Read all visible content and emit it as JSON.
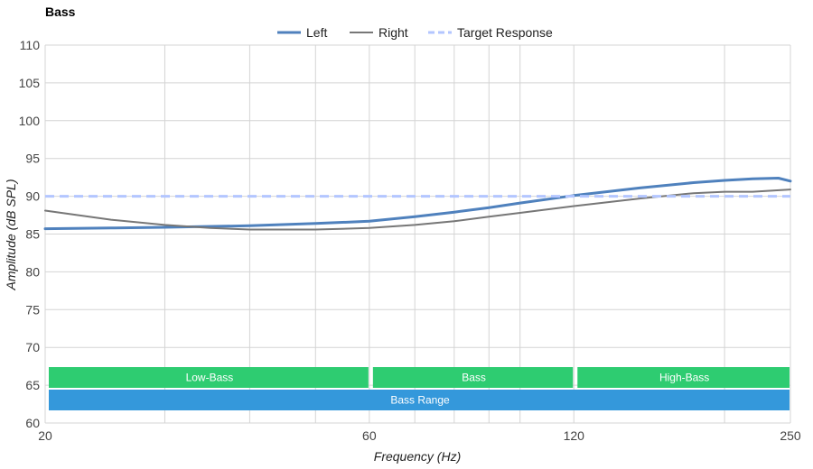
{
  "chart_data": {
    "type": "line",
    "title": "Bass",
    "xlabel": "Frequency (Hz)",
    "ylabel": "Amplitude (dB SPL)",
    "x_scale": "log",
    "xlim": [
      20,
      250
    ],
    "ylim": [
      60,
      110
    ],
    "x_ticks": [
      20,
      60,
      120,
      250
    ],
    "y_ticks": [
      60,
      65,
      70,
      75,
      80,
      85,
      90,
      95,
      100,
      105,
      110
    ],
    "x_minor_gridlines": [
      30,
      40,
      50,
      70,
      80,
      90,
      100,
      200
    ],
    "grid": true,
    "legend_position": "top",
    "series": [
      {
        "name": "Left",
        "color": "#4f81bd",
        "style": "solid",
        "stroke": "thick",
        "x": [
          20,
          25,
          30,
          40,
          50,
          60,
          70,
          80,
          90,
          100,
          120,
          150,
          180,
          200,
          220,
          240,
          250
        ],
        "y": [
          85.7,
          85.8,
          85.9,
          86.1,
          86.4,
          86.7,
          87.3,
          87.9,
          88.5,
          89.1,
          90.1,
          91.1,
          91.8,
          92.1,
          92.3,
          92.4,
          92.0
        ]
      },
      {
        "name": "Right",
        "color": "#777777",
        "style": "solid",
        "stroke": "thin",
        "x": [
          20,
          25,
          30,
          35,
          40,
          50,
          60,
          70,
          80,
          90,
          100,
          120,
          150,
          180,
          200,
          220,
          250
        ],
        "y": [
          88.1,
          86.9,
          86.2,
          85.8,
          85.6,
          85.6,
          85.8,
          86.2,
          86.7,
          87.3,
          87.8,
          88.7,
          89.7,
          90.4,
          90.6,
          90.6,
          90.9
        ]
      },
      {
        "name": "Target Response",
        "color": "#b3c6ff",
        "style": "dashed",
        "stroke": "thick",
        "x": [
          20,
          250
        ],
        "y": [
          90,
          90
        ]
      }
    ],
    "bands": [
      {
        "label": "Low-Bass",
        "from": 20,
        "to": 60,
        "color": "#2ecc71",
        "row": 1
      },
      {
        "label": "Bass",
        "from": 60,
        "to": 120,
        "color": "#2ecc71",
        "row": 1
      },
      {
        "label": "High-Bass",
        "from": 120,
        "to": 250,
        "color": "#2ecc71",
        "row": 1
      },
      {
        "label": "Bass Range",
        "from": 20,
        "to": 250,
        "color": "#3498db",
        "row": 2
      }
    ]
  }
}
